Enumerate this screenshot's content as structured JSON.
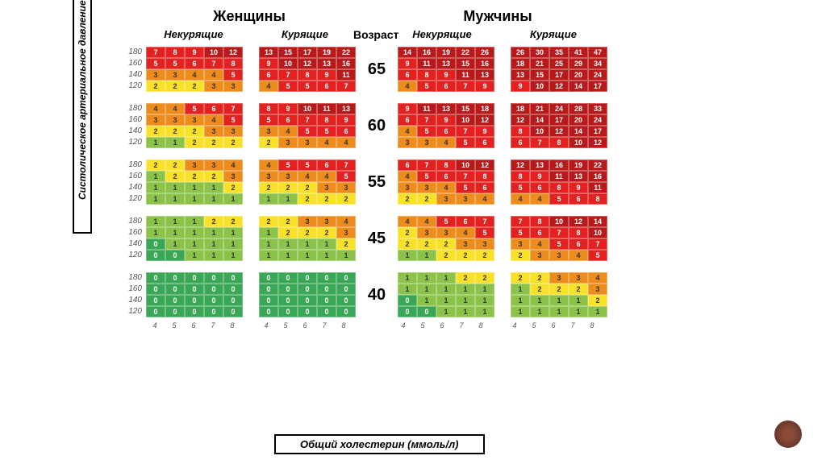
{
  "titles": {
    "women": "Женщины",
    "men": "Мужчины",
    "nonsmoking": "Некурящие",
    "smoking": "Курящие",
    "age": "Возраст",
    "y_axis": "Систолическое артериальное давление (мм рт. ст.)",
    "x_axis": "Общий холестерин (ммоль/л)"
  },
  "bp_labels": [
    "180",
    "160",
    "140",
    "120"
  ],
  "chol_labels": [
    "4",
    "5",
    "6",
    "7",
    "8"
  ],
  "ages": [
    "65",
    "60",
    "55",
    "45",
    "40"
  ],
  "colors": {
    "darkred": "#b8191a",
    "red": "#e32121",
    "orange": "#ed8b1c",
    "yellow": "#f9e029",
    "green": "#8bc24a",
    "teal": "#3aa757"
  },
  "blocks": {
    "65": {
      "wn": [
        [
          7,
          8,
          9,
          10,
          12
        ],
        [
          5,
          5,
          6,
          7,
          8
        ],
        [
          3,
          3,
          4,
          4,
          5
        ],
        [
          2,
          2,
          2,
          3,
          3
        ]
      ],
      "ws": [
        [
          13,
          15,
          17,
          19,
          22
        ],
        [
          9,
          10,
          12,
          13,
          16
        ],
        [
          6,
          7,
          8,
          9,
          11
        ],
        [
          4,
          5,
          5,
          6,
          7
        ]
      ],
      "mn": [
        [
          14,
          16,
          19,
          22,
          26
        ],
        [
          9,
          11,
          13,
          15,
          16
        ],
        [
          6,
          8,
          9,
          11,
          13
        ],
        [
          4,
          5,
          6,
          7,
          9
        ]
      ],
      "ms": [
        [
          26,
          30,
          35,
          41,
          47
        ],
        [
          18,
          21,
          25,
          29,
          34
        ],
        [
          13,
          15,
          17,
          20,
          24
        ],
        [
          9,
          10,
          12,
          14,
          17
        ]
      ]
    },
    "60": {
      "wn": [
        [
          4,
          4,
          5,
          6,
          7
        ],
        [
          3,
          3,
          3,
          4,
          5
        ],
        [
          2,
          2,
          2,
          3,
          3
        ],
        [
          1,
          1,
          2,
          2,
          2
        ]
      ],
      "ws": [
        [
          8,
          9,
          10,
          11,
          13
        ],
        [
          5,
          6,
          7,
          8,
          9
        ],
        [
          3,
          4,
          5,
          5,
          6
        ],
        [
          2,
          3,
          3,
          4,
          4
        ]
      ],
      "mn": [
        [
          9,
          11,
          13,
          15,
          18
        ],
        [
          6,
          7,
          9,
          10,
          12
        ],
        [
          4,
          5,
          6,
          7,
          9
        ],
        [
          3,
          3,
          4,
          5,
          6
        ]
      ],
      "ms": [
        [
          18,
          21,
          24,
          28,
          33
        ],
        [
          12,
          14,
          17,
          20,
          24
        ],
        [
          8,
          10,
          12,
          14,
          17
        ],
        [
          6,
          7,
          8,
          10,
          12
        ]
      ]
    },
    "55": {
      "wn": [
        [
          2,
          2,
          3,
          3,
          4
        ],
        [
          1,
          2,
          2,
          2,
          3
        ],
        [
          1,
          1,
          1,
          1,
          2
        ],
        [
          1,
          1,
          1,
          1,
          1
        ]
      ],
      "ws": [
        [
          4,
          5,
          5,
          6,
          7
        ],
        [
          3,
          3,
          4,
          4,
          5
        ],
        [
          2,
          2,
          2,
          3,
          3
        ],
        [
          1,
          1,
          2,
          2,
          2
        ]
      ],
      "mn": [
        [
          6,
          7,
          8,
          10,
          12
        ],
        [
          4,
          5,
          6,
          7,
          8
        ],
        [
          3,
          3,
          4,
          5,
          6
        ],
        [
          2,
          2,
          3,
          3,
          4
        ]
      ],
      "ms": [
        [
          12,
          13,
          16,
          19,
          22
        ],
        [
          8,
          9,
          11,
          13,
          16
        ],
        [
          5,
          6,
          8,
          9,
          11
        ],
        [
          4,
          4,
          5,
          6,
          8
        ]
      ]
    },
    "45": {
      "wn": [
        [
          1,
          1,
          1,
          2,
          2
        ],
        [
          1,
          1,
          1,
          1,
          1
        ],
        [
          0,
          1,
          1,
          1,
          1
        ],
        [
          0,
          0,
          1,
          1,
          1
        ]
      ],
      "ws": [
        [
          2,
          2,
          3,
          3,
          4
        ],
        [
          1,
          2,
          2,
          2,
          3
        ],
        [
          1,
          1,
          1,
          1,
          2
        ],
        [
          1,
          1,
          1,
          1,
          1
        ]
      ],
      "mn": [
        [
          4,
          4,
          5,
          6,
          7
        ],
        [
          2,
          3,
          3,
          4,
          5
        ],
        [
          2,
          2,
          2,
          3,
          3
        ],
        [
          1,
          1,
          2,
          2,
          2
        ]
      ],
      "ms": [
        [
          7,
          8,
          10,
          12,
          14
        ],
        [
          5,
          6,
          7,
          8,
          10
        ],
        [
          3,
          4,
          5,
          6,
          7
        ],
        [
          2,
          3,
          3,
          4,
          5
        ]
      ]
    },
    "40": {
      "wn": [
        [
          0,
          0,
          0,
          0,
          0
        ],
        [
          0,
          0,
          0,
          0,
          0
        ],
        [
          0,
          0,
          0,
          0,
          0
        ],
        [
          0,
          0,
          0,
          0,
          0
        ]
      ],
      "ws": [
        [
          0,
          0,
          0,
          0,
          0
        ],
        [
          0,
          0,
          0,
          0,
          0
        ],
        [
          0,
          0,
          0,
          0,
          0
        ],
        [
          0,
          0,
          0,
          0,
          0
        ]
      ],
      "mn": [
        [
          1,
          1,
          1,
          2,
          2
        ],
        [
          1,
          1,
          1,
          1,
          1
        ],
        [
          0,
          1,
          1,
          1,
          1
        ],
        [
          0,
          0,
          1,
          1,
          1
        ]
      ],
      "ms": [
        [
          2,
          2,
          3,
          3,
          4
        ],
        [
          1,
          2,
          2,
          2,
          3
        ],
        [
          1,
          1,
          1,
          1,
          2
        ],
        [
          1,
          1,
          1,
          1,
          1
        ]
      ]
    }
  }
}
